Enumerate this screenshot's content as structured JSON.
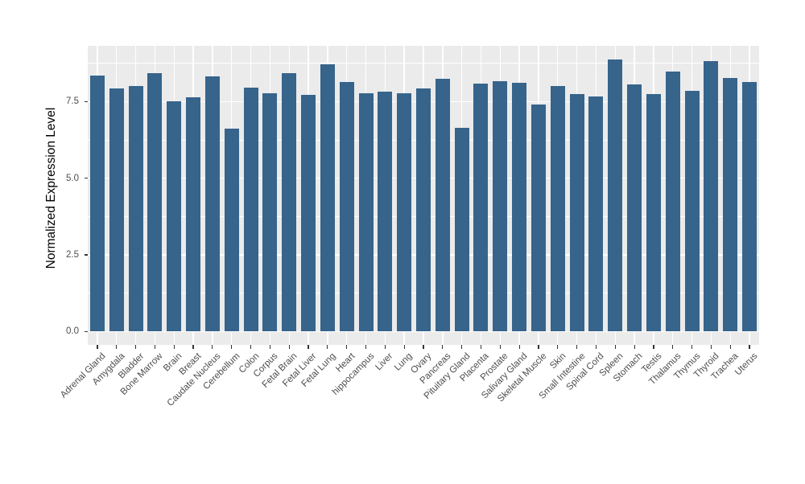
{
  "figure": {
    "background": "#FFFFFF"
  },
  "chart_data": {
    "type": "bar",
    "title": "",
    "xlabel": "",
    "ylabel": "Normalized Expression Level",
    "legend_position": "none",
    "grid": true,
    "ylim": [
      0,
      9.3
    ],
    "categories": [
      "Adrenal Gland",
      "Amygdala",
      "Bladder",
      "Bone Marrow",
      "Brain",
      "Breast",
      "Caudate Nucleus",
      "Cerebellum",
      "Colon",
      "Corpus",
      "Fetal Brain",
      "Fetal Liver",
      "Fetal Lung",
      "Heart",
      "hippocampus",
      "Liver",
      "Lung",
      "Ovary",
      "Pancreas",
      "Pituitary Gland",
      "Placenta",
      "Prostate",
      "Salivary Gland",
      "Skeletal Muscle",
      "Skin",
      "Small Intestine",
      "Spinal Cord",
      "Spleen",
      "Stomach",
      "Testis",
      "Thalamus",
      "Thymus",
      "Thyroid",
      "Trachea",
      "Uterus"
    ],
    "values": [
      8.35,
      7.93,
      8.02,
      8.43,
      7.51,
      7.65,
      8.33,
      6.62,
      7.95,
      7.76,
      8.44,
      7.72,
      8.71,
      8.15,
      7.77,
      7.83,
      7.77,
      7.93,
      8.25,
      6.65,
      8.09,
      8.16,
      8.11,
      7.41,
      8.0,
      7.74,
      7.68,
      8.88,
      8.07,
      7.74,
      8.47,
      7.85,
      8.81,
      8.27,
      8.14
    ],
    "y_ticks": [
      {
        "value": 0.0,
        "label": "0.0"
      },
      {
        "value": 2.5,
        "label": "2.5"
      },
      {
        "value": 5.0,
        "label": "5.0"
      },
      {
        "value": 7.5,
        "label": "7.5"
      }
    ],
    "y_minor_gridlines": [
      1.25,
      3.75,
      6.25,
      8.75
    ],
    "colors": {
      "bar_fill": "#36648B",
      "panel_background": "#EBEBEB",
      "gridline": "#FFFFFF",
      "tick_label": "#4D4D4D",
      "axis_title": "#000000",
      "tick_mark": "#333333"
    }
  }
}
